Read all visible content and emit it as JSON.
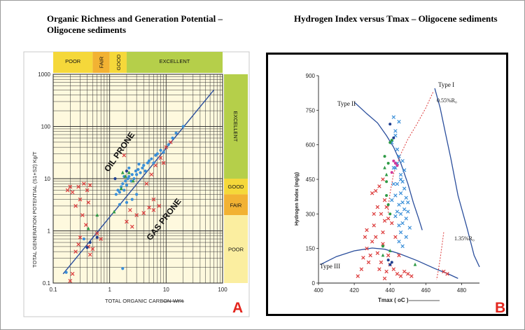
{
  "titles": {
    "a": "Organic Richness and Generation Potential – Oligocene sediments",
    "b": "Hydrogen Index versus Tmax – Oligocene sediments"
  },
  "panel_labels": {
    "a": "A",
    "b": "B"
  },
  "colors": {
    "band_yellow": "#f5d83a",
    "band_light": "#fbeea0",
    "band_orange": "#f2b233",
    "band_green": "#b5cf4a",
    "red": "#dc3a3a",
    "blue": "#3a8fd8",
    "green": "#2e9a45",
    "navy": "#1f3f8f",
    "magenta": "#d2389a",
    "curve": "#2a4e9c"
  },
  "chart_data": [
    {
      "id": "A",
      "type": "scatter",
      "title": "Organic Richness and Generation Potential – Oligocene sediments",
      "xlabel": "TOTAL ORGANIC CARBON-Wt%",
      "ylabel": "TOTAL GENERATION POTENTIAL (S1+S2) Kg/T",
      "xscale": "log",
      "yscale": "log",
      "xlim": [
        0.1,
        100
      ],
      "ylim": [
        0.1,
        1000
      ],
      "x_ticks": [
        "0.1",
        "1",
        "10",
        "100"
      ],
      "y_ticks": [
        "0.1",
        "1",
        "10",
        "100",
        "1000"
      ],
      "top_bands": [
        "POOR",
        "FAIR",
        "GOOD",
        "EXCELLENT"
      ],
      "right_bands": [
        "EXCELLENT",
        "GOOD",
        "FAIR",
        "POOR"
      ],
      "annotations": [
        "OIL PRONE",
        "GAS PRONE"
      ],
      "trend_line": [
        [
          0.15,
          0.15
        ],
        [
          70,
          500
        ]
      ],
      "series": [
        {
          "color": "red",
          "marker": "x",
          "points": [
            [
              0.18,
              6
            ],
            [
              0.2,
              7
            ],
            [
              0.22,
              5.5
            ],
            [
              0.25,
              3
            ],
            [
              0.28,
              7
            ],
            [
              0.3,
              4
            ],
            [
              0.35,
              8
            ],
            [
              0.4,
              6
            ],
            [
              0.45,
              7.5
            ],
            [
              0.33,
              2
            ],
            [
              0.38,
              1.3
            ],
            [
              0.3,
              0.75
            ],
            [
              0.28,
              0.55
            ],
            [
              0.25,
              0.4
            ],
            [
              0.22,
              0.15
            ],
            [
              0.2,
              0.11
            ],
            [
              0.42,
              0.5
            ],
            [
              0.5,
              0.45
            ],
            [
              0.45,
              0.35
            ],
            [
              0.6,
              0.9
            ],
            [
              0.7,
              0.7
            ],
            [
              2,
              1.5
            ],
            [
              2.3,
              2.5
            ],
            [
              2.5,
              1.2
            ],
            [
              3,
              2
            ],
            [
              4,
              2.2
            ],
            [
              5,
              2.8
            ],
            [
              6,
              2.5
            ],
            [
              7.5,
              3
            ],
            [
              6,
              4
            ],
            [
              4.5,
              8
            ],
            [
              5.5,
              12
            ],
            [
              6.5,
              18
            ],
            [
              8,
              25
            ],
            [
              9,
              20
            ],
            [
              10,
              40
            ],
            [
              12,
              50
            ],
            [
              1.8,
              28
            ],
            [
              0.42,
              3.5
            ]
          ]
        },
        {
          "color": "blue",
          "marker": "dot",
          "points": [
            [
              1.3,
              5
            ],
            [
              1.4,
              6
            ],
            [
              1.5,
              5.5
            ],
            [
              1.6,
              7
            ],
            [
              1.7,
              8
            ],
            [
              1.8,
              6
            ],
            [
              1.9,
              9
            ],
            [
              2,
              7.5
            ],
            [
              2.1,
              10
            ],
            [
              2.2,
              11
            ],
            [
              2.4,
              9
            ],
            [
              2.5,
              12
            ],
            [
              2.7,
              10
            ],
            [
              2.9,
              14
            ],
            [
              3,
              12
            ],
            [
              3.2,
              15
            ],
            [
              3.5,
              13
            ],
            [
              3.8,
              16
            ],
            [
              4,
              18
            ],
            [
              4.3,
              14
            ],
            [
              4.7,
              20
            ],
            [
              5,
              22
            ],
            [
              5.5,
              24
            ],
            [
              6,
              20
            ],
            [
              6.5,
              28
            ],
            [
              7,
              30
            ],
            [
              8,
              35
            ],
            [
              9,
              32
            ],
            [
              11,
              45
            ],
            [
              13,
              60
            ],
            [
              15,
              75
            ],
            [
              20,
              100
            ],
            [
              2,
              3.5
            ],
            [
              2.5,
              4
            ],
            [
              3,
              5
            ],
            [
              1.7,
              0.19
            ],
            [
              0.17,
              0.16
            ],
            [
              0.35,
              0.7
            ],
            [
              1.5,
              3.2
            ],
            [
              1.8,
              11
            ],
            [
              2.2,
              16
            ],
            [
              3.3,
              19
            ]
          ]
        },
        {
          "color": "green",
          "marker": "triangle",
          "points": [
            [
              1.9,
              11
            ],
            [
              2.2,
              13
            ],
            [
              1.6,
              6.5
            ],
            [
              2.6,
              9
            ],
            [
              0.42,
              1.1
            ],
            [
              0.6,
              2
            ],
            [
              1.2,
              2.3
            ],
            [
              1.7,
              13
            ]
          ]
        },
        {
          "color": "navy",
          "marker": "dot",
          "points": [
            [
              0.4,
              0.48
            ],
            [
              0.45,
              0.6
            ],
            [
              0.6,
              0.75
            ],
            [
              1.25,
              10
            ],
            [
              2,
              14
            ]
          ]
        }
      ]
    },
    {
      "id": "B",
      "type": "scatter",
      "title": "Hydrogen Index versus Tmax – Oligocene sediments",
      "xlabel": "Tmax ( oC )",
      "ylabel": "Hydrogen Index (mg/g)",
      "xlim": [
        400,
        490
      ],
      "ylim": [
        0,
        900
      ],
      "x_ticks": [
        "400",
        "420",
        "440",
        "460",
        "480"
      ],
      "y_ticks": [
        "0",
        "150",
        "300",
        "450",
        "600",
        "750",
        "900"
      ],
      "annotations": [
        "Type I",
        "Type II",
        "Type III",
        "0.55%R₀",
        "1.35%R₀"
      ],
      "curves": {
        "type_i": [
          [
            465,
            845
          ],
          [
            468,
            760
          ],
          [
            471,
            650
          ],
          [
            474,
            540
          ],
          [
            478,
            380
          ],
          [
            483,
            240
          ],
          [
            487,
            120
          ],
          [
            490,
            70
          ]
        ],
        "type_ii": [
          [
            420,
            785
          ],
          [
            427,
            735
          ],
          [
            433,
            695
          ],
          [
            438,
            640
          ],
          [
            442,
            590
          ],
          [
            446,
            520
          ],
          [
            450,
            430
          ],
          [
            453,
            350
          ],
          [
            456,
            280
          ],
          [
            458,
            230
          ]
        ],
        "type_iii": [
          [
            401,
            80
          ],
          [
            410,
            115
          ],
          [
            420,
            140
          ],
          [
            430,
            152
          ],
          [
            437,
            147
          ],
          [
            445,
            128
          ],
          [
            455,
            98
          ],
          [
            465,
            63
          ],
          [
            473,
            38
          ],
          [
            478,
            20
          ]
        ],
        "ro_055": [
          [
            464,
            828
          ],
          [
            460,
            760
          ],
          [
            455,
            690
          ],
          [
            450,
            625
          ],
          [
            446,
            560
          ],
          [
            442,
            475
          ],
          [
            440,
            390
          ],
          [
            439,
            330
          ],
          [
            439,
            300
          ]
        ],
        "ro_135": [
          [
            470,
            220
          ],
          [
            469,
            160
          ],
          [
            468,
            105
          ],
          [
            467,
            55
          ],
          [
            466,
            15
          ]
        ]
      },
      "series": [
        {
          "color": "blue",
          "marker": "x",
          "points": [
            [
              441,
              610
            ],
            [
              443,
              660
            ],
            [
              444,
              580
            ],
            [
              445,
              550
            ],
            [
              443,
              500
            ],
            [
              446,
              470
            ],
            [
              447,
              440
            ],
            [
              444,
              430
            ],
            [
              448,
              410
            ],
            [
              446,
              390
            ],
            [
              449,
              370
            ],
            [
              447,
              350
            ],
            [
              445,
              340
            ],
            [
              448,
              320
            ],
            [
              450,
              310
            ],
            [
              446,
              300
            ],
            [
              443,
              290
            ],
            [
              449,
              280
            ],
            [
              447,
              260
            ],
            [
              445,
              250
            ],
            [
              451,
              240
            ],
            [
              444,
              520
            ],
            [
              442,
              720
            ],
            [
              445,
              700
            ],
            [
              443,
              640
            ],
            [
              447,
              530
            ],
            [
              448,
              490
            ],
            [
              446,
              450
            ],
            [
              442,
              430
            ],
            [
              443,
              380
            ],
            [
              441,
              360
            ],
            [
              444,
              310
            ],
            [
              446,
              220
            ],
            [
              449,
              200
            ],
            [
              445,
              180
            ],
            [
              447,
              160
            ],
            [
              442,
              500
            ],
            [
              450,
              350
            ]
          ]
        },
        {
          "color": "red",
          "marker": "x",
          "points": [
            [
              422,
              30
            ],
            [
              425,
              110
            ],
            [
              427,
              150
            ],
            [
              428,
              90
            ],
            [
              430,
              180
            ],
            [
              431,
              250
            ],
            [
              432,
              200
            ],
            [
              433,
              130
            ],
            [
              434,
              60
            ],
            [
              435,
              300
            ],
            [
              436,
              220
            ],
            [
              436,
              170
            ],
            [
              437,
              270
            ],
            [
              438,
              50
            ],
            [
              439,
              120
            ],
            [
              430,
              390
            ],
            [
              432,
              400
            ],
            [
              434,
              420
            ],
            [
              436,
              450
            ],
            [
              437,
              360
            ],
            [
              438,
              330
            ],
            [
              440,
              80
            ],
            [
              442,
              60
            ],
            [
              444,
              40
            ],
            [
              446,
              30
            ],
            [
              448,
              50
            ],
            [
              450,
              40
            ],
            [
              452,
              30
            ],
            [
              470,
              50
            ],
            [
              472,
              40
            ],
            [
              429,
              120
            ],
            [
              427,
              230
            ],
            [
              433,
              330
            ],
            [
              424,
              60
            ],
            [
              426,
              200
            ],
            [
              431,
              300
            ],
            [
              435,
              90
            ],
            [
              437,
              20
            ],
            [
              439,
              280
            ],
            [
              441,
              260
            ],
            [
              443,
              200
            ],
            [
              445,
              120
            ]
          ]
        },
        {
          "color": "green",
          "marker": "dot",
          "points": [
            [
              439,
              520
            ],
            [
              440,
              610
            ],
            [
              441,
              620
            ],
            [
              438,
              440
            ],
            [
              438,
              380
            ],
            [
              439,
              340
            ],
            [
              440,
              300
            ],
            [
              436,
              160
            ],
            [
              437,
              550
            ]
          ]
        },
        {
          "color": "green",
          "marker": "triangle",
          "points": [
            [
              437,
              500
            ],
            [
              438,
              470
            ],
            [
              436,
              120
            ],
            [
              440,
              140
            ],
            [
              454,
              80
            ]
          ]
        },
        {
          "color": "navy",
          "marker": "dot",
          "points": [
            [
              440,
              690
            ],
            [
              440,
              80
            ],
            [
              441,
              90
            ],
            [
              439,
              100
            ],
            [
              442,
              630
            ]
          ]
        },
        {
          "color": "magenta",
          "marker": "dot",
          "points": [
            [
              442,
              530
            ],
            [
              443,
              520
            ],
            [
              441,
              480
            ],
            [
              444,
              510
            ]
          ]
        }
      ]
    }
  ]
}
